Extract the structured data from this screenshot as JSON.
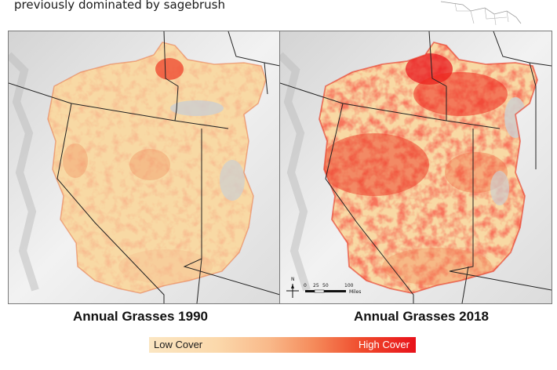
{
  "caption": "previously dominated by sagebrush",
  "panels": [
    {
      "id": "1990",
      "title": "Annual Grasses 1990"
    },
    {
      "id": "2018",
      "title": "Annual Grasses 2018"
    }
  ],
  "scale_bar": {
    "ticks": [
      "0",
      "25",
      "50",
      "100"
    ],
    "unit": "Miles",
    "north": "N"
  },
  "legend": {
    "low_label": "Low Cover",
    "high_label": "High Cover",
    "low_color": "#fbe6c2",
    "high_color": "#e8111a"
  },
  "colors": {
    "region_base": "#f8d9a4",
    "terrain": "#e2e2e2",
    "boundary": "#222222"
  }
}
